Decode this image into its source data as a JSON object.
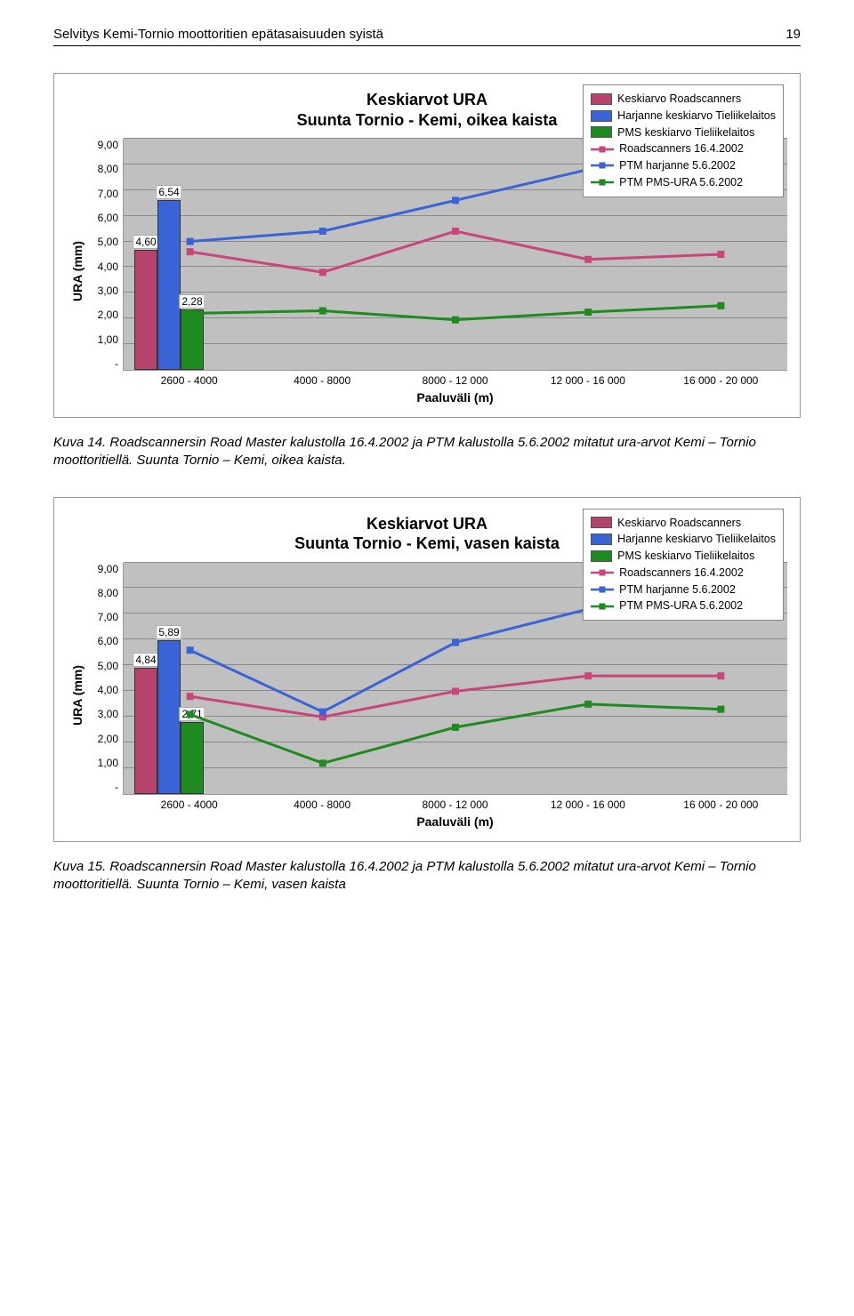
{
  "header": {
    "title": "Selvitys Kemi-Tornio moottoritien epätasaisuuden syistä",
    "pageno": "19"
  },
  "chart1": {
    "title1": "Keskiarvot URA",
    "title2": "Suunta Tornio - Kemi, oikea kaista",
    "ylabel": "URA (mm)",
    "xlabel": "Paaluväli (m)",
    "ymax": 9,
    "yticks": [
      "9,00",
      "8,00",
      "7,00",
      "6,00",
      "5,00",
      "4,00",
      "3,00",
      "2,00",
      "1,00",
      "-"
    ],
    "categories": [
      "2600 - 4000",
      "4000 - 8000",
      "8000 - 12 000",
      "12 000 - 16 000",
      "16 000 - 20 000"
    ],
    "plot_bg": "#c0c0c0",
    "grid_color": "#8a8a8a",
    "legend": [
      {
        "type": "box",
        "label": "Keskiarvo Roadscanners",
        "color": "#b6426e"
      },
      {
        "type": "box",
        "label": "Harjanne keskiarvo Tieliikelaitos",
        "color": "#3a63d6"
      },
      {
        "type": "box",
        "label": "PMS keskiarvo Tieliikelaitos",
        "color": "#1f8a1f"
      },
      {
        "type": "line",
        "label": "Roadscanners 16.4.2002",
        "color": "#c8467a"
      },
      {
        "type": "line",
        "label": "PTM harjanne 5.6.2002",
        "color": "#3a63d6"
      },
      {
        "type": "line",
        "label": "PTM PMS-URA 5.6.2002",
        "color": "#1f8a1f"
      }
    ],
    "bars": [
      {
        "value": 4.6,
        "label": "4,60",
        "color": "#b6426e"
      },
      {
        "value": 6.54,
        "label": "6,54",
        "color": "#3a63d6"
      },
      {
        "value": 2.28,
        "label": "2,28",
        "color": "#1f8a1f"
      }
    ],
    "lines": {
      "road": {
        "color": "#c8467a",
        "y": [
          4.6,
          3.8,
          5.4,
          4.3,
          4.5
        ]
      },
      "ptm_h": {
        "color": "#3a63d6",
        "y": [
          5.0,
          5.4,
          6.6,
          7.8,
          7.1
        ]
      },
      "ptm_pms": {
        "color": "#1f8a1f",
        "y": [
          2.2,
          2.3,
          1.95,
          2.25,
          2.5
        ]
      }
    }
  },
  "caption1": "Kuva 14. Roadscannersin Road Master kalustolla 16.4.2002 ja PTM kalustolla 5.6.2002 mitatut ura-arvot Kemi – Tornio moottoritiellä. Suunta Tornio – Kemi, oikea kaista.",
  "chart2": {
    "title1": "Keskiarvot URA",
    "title2": "Suunta Tornio - Kemi, vasen kaista",
    "ylabel": "URA (mm)",
    "xlabel": "Paaluväli (m)",
    "ymax": 9,
    "yticks": [
      "9,00",
      "8,00",
      "7,00",
      "6,00",
      "5,00",
      "4,00",
      "3,00",
      "2,00",
      "1,00",
      "-"
    ],
    "categories": [
      "2600 - 4000",
      "4000 - 8000",
      "8000 - 12 000",
      "12 000 - 16 000",
      "16 000 - 20 000"
    ],
    "plot_bg": "#c0c0c0",
    "grid_color": "#8a8a8a",
    "legend": [
      {
        "type": "box",
        "label": "Keskiarvo Roadscanners",
        "color": "#b6426e"
      },
      {
        "type": "box",
        "label": "Harjanne keskiarvo Tieliikelaitos",
        "color": "#3a63d6"
      },
      {
        "type": "box",
        "label": "PMS keskiarvo Tieliikelaitos",
        "color": "#1f8a1f"
      },
      {
        "type": "line",
        "label": "Roadscanners 16.4.2002",
        "color": "#c8467a"
      },
      {
        "type": "line",
        "label": "PTM harjanne 5.6.2002",
        "color": "#3a63d6"
      },
      {
        "type": "line",
        "label": "PTM PMS-URA 5.6.2002",
        "color": "#1f8a1f"
      }
    ],
    "bars": [
      {
        "value": 4.84,
        "label": "4,84",
        "color": "#b6426e"
      },
      {
        "value": 5.89,
        "label": "5,89",
        "color": "#3a63d6"
      },
      {
        "value": 2.71,
        "label": "2,71",
        "color": "#1f8a1f"
      }
    ],
    "lines": {
      "road": {
        "color": "#c8467a",
        "y": [
          3.8,
          3.0,
          4.0,
          4.6,
          4.6
        ]
      },
      "ptm_h": {
        "color": "#3a63d6",
        "y": [
          5.6,
          3.2,
          5.9,
          7.2,
          7.5
        ]
      },
      "ptm_pms": {
        "color": "#1f8a1f",
        "y": [
          3.1,
          1.2,
          2.6,
          3.5,
          3.3
        ]
      }
    }
  },
  "caption2": "Kuva 15. Roadscannersin Road Master kalustolla 16.4.2002 ja PTM kalustolla 5.6.2002 mitatut ura-arvot Kemi – Tornio moottoritiellä. Suunta Tornio – Kemi, vasen kaista"
}
